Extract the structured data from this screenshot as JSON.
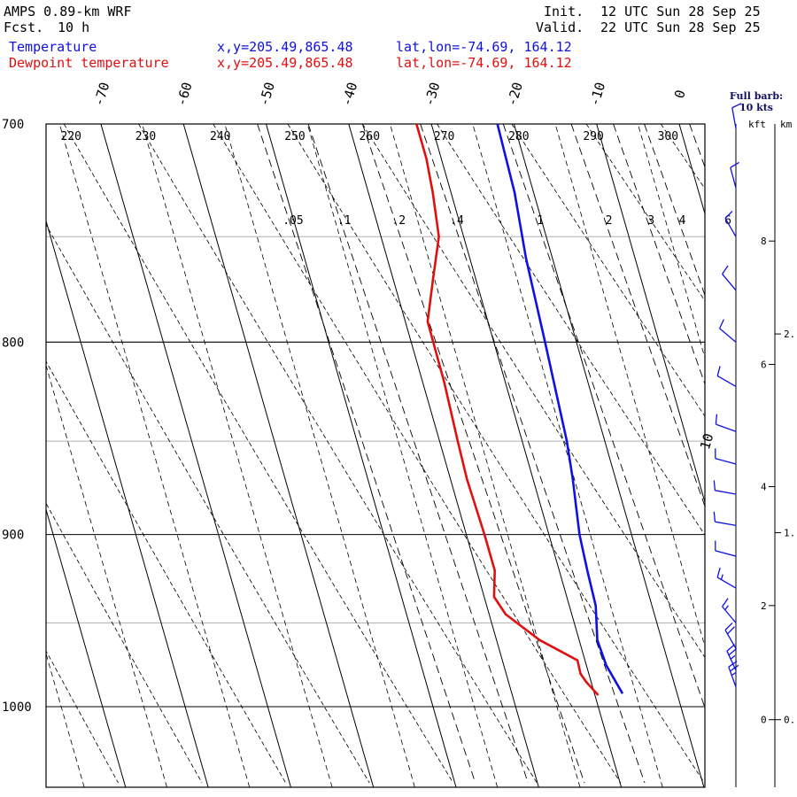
{
  "header": {
    "model": "AMPS 0.89-km WRF",
    "fcst_label": "Fcst.",
    "fcst_value": "10 h",
    "init_label": "Init.",
    "init_value": "12 UTC Sun 28 Sep 25",
    "valid_label": "Valid.",
    "valid_value": "22 UTC Sun 28 Sep 25",
    "temp_label": "Temperature",
    "dew_label": "Dewpoint temperature",
    "xy_temp": "x,y=205.49,865.48",
    "xy_dew": "x,y=205.49,865.48",
    "latlon_temp": "lat,lon=-74.69, 164.12",
    "latlon_dew": "lat,lon=-74.69, 164.12"
  },
  "colors": {
    "temperature": "#1010e0",
    "dewpoint": "#e01010",
    "grid": "#000000",
    "pressure_minor": "#b0b0b0",
    "barbs": "#1010e0"
  },
  "legend": {
    "full_barb": "Full barb:",
    "full_barb_value": "10 kts",
    "kft": "kft",
    "km": "km"
  },
  "chart_data": {
    "type": "skew-t",
    "y_axis": "pressure (hPa), logarithmic",
    "ylim": [
      1040,
      700
    ],
    "pressure_labels": [
      700,
      800,
      900,
      1000
    ],
    "pressure_minor": [
      750,
      850,
      950
    ],
    "temperature_ticks": [
      -70,
      -60,
      -50,
      -40,
      -30,
      -20,
      -10,
      0
    ],
    "isotherm_range": [
      -110,
      40
    ],
    "isotherm_step": 5,
    "dry_adiabat_labels": [
      220,
      230,
      240,
      250,
      260,
      270,
      280,
      290,
      300
    ],
    "mixing_ratio_labels": [
      ".05",
      ".1",
      ".2",
      ".4",
      "1",
      "2",
      "3",
      "4",
      "6"
    ],
    "mixing_ratio_values": [
      0.05,
      0.1,
      0.2,
      0.4,
      1,
      2,
      3,
      4,
      6
    ],
    "isotherm_label_on_plot": "10",
    "series": [
      {
        "name": "Temperature",
        "points": [
          [
            700,
            -22.0
          ],
          [
            730,
            -22.3
          ],
          [
            760,
            -23.2
          ],
          [
            800,
            -23.8
          ],
          [
            850,
            -24.6
          ],
          [
            870,
            -25.2
          ],
          [
            900,
            -26.3
          ],
          [
            920,
            -26.6
          ],
          [
            940,
            -26.8
          ],
          [
            960,
            -27.8
          ],
          [
            975,
            -27.6
          ],
          [
            992,
            -26.6
          ]
        ]
      },
      {
        "name": "Dewpoint temperature",
        "points": [
          [
            700,
            -31.8
          ],
          [
            715,
            -31.8
          ],
          [
            730,
            -32.2
          ],
          [
            750,
            -33.0
          ],
          [
            770,
            -35.2
          ],
          [
            790,
            -37.3
          ],
          [
            820,
            -37.4
          ],
          [
            850,
            -37.8
          ],
          [
            870,
            -38.0
          ],
          [
            900,
            -37.8
          ],
          [
            920,
            -37.8
          ],
          [
            935,
            -38.8
          ],
          [
            945,
            -38.0
          ],
          [
            960,
            -34.8
          ],
          [
            972,
            -30.9
          ],
          [
            980,
            -31.0
          ],
          [
            985,
            -30.6
          ],
          [
            993,
            -29.6
          ]
        ]
      }
    ],
    "wind_barbs": {
      "units": "kts",
      "levels": [
        {
          "p": 702,
          "dir": 350,
          "spd": 10
        },
        {
          "p": 728,
          "dir": 345,
          "spd": 10
        },
        {
          "p": 750,
          "dir": 330,
          "spd": 10
        },
        {
          "p": 775,
          "dir": 320,
          "spd": 10
        },
        {
          "p": 800,
          "dir": 310,
          "spd": 10
        },
        {
          "p": 822,
          "dir": 300,
          "spd": 10
        },
        {
          "p": 845,
          "dir": 290,
          "spd": 10
        },
        {
          "p": 862,
          "dir": 285,
          "spd": 10
        },
        {
          "p": 878,
          "dir": 280,
          "spd": 10
        },
        {
          "p": 895,
          "dir": 280,
          "spd": 10
        },
        {
          "p": 912,
          "dir": 285,
          "spd": 10
        },
        {
          "p": 930,
          "dir": 300,
          "spd": 15
        },
        {
          "p": 950,
          "dir": 320,
          "spd": 15
        },
        {
          "p": 965,
          "dir": 330,
          "spd": 20
        },
        {
          "p": 978,
          "dir": 335,
          "spd": 25
        },
        {
          "p": 988,
          "dir": 340,
          "spd": 25
        }
      ]
    },
    "height_axis_kft": [
      {
        "label": "0",
        "p": 1008
      },
      {
        "label": "2",
        "p": 940
      },
      {
        "label": "4",
        "p": 874
      },
      {
        "label": "6",
        "p": 811
      },
      {
        "label": "8",
        "p": 752
      }
    ],
    "height_axis_km": [
      {
        "label": "0.",
        "p": 1008
      },
      {
        "label": "1.",
        "p": 899
      },
      {
        "label": "2.",
        "p": 796
      }
    ]
  }
}
